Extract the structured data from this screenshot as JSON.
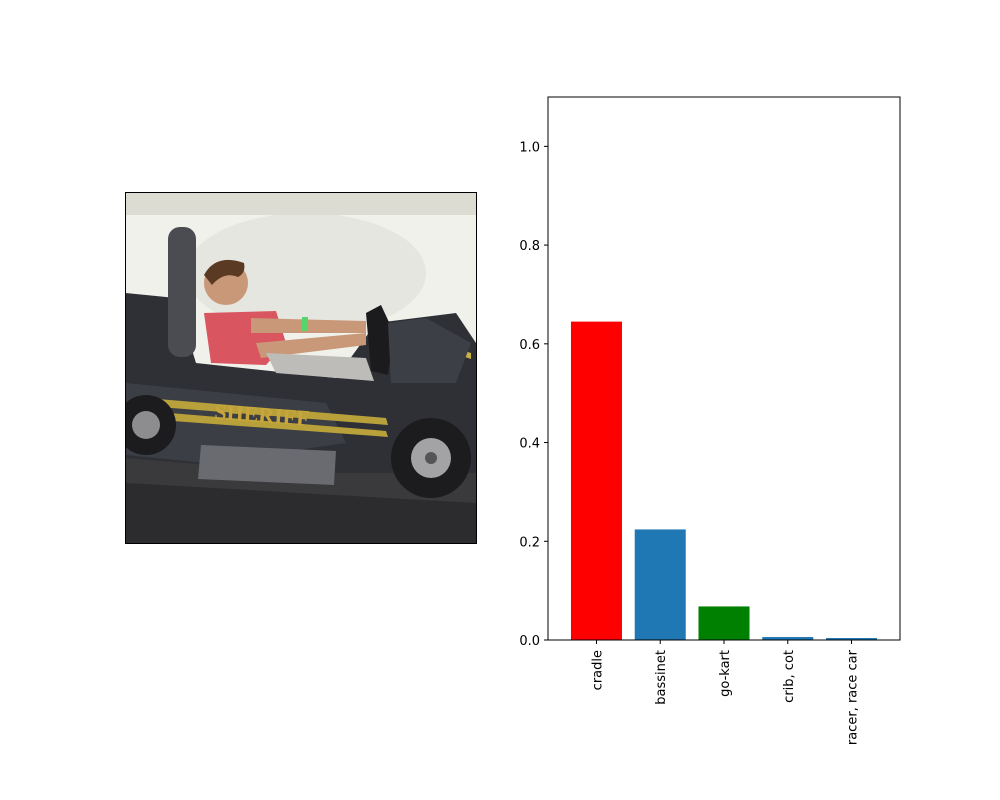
{
  "image_panel": {
    "description_icon": "photo-icon",
    "car_text": "SHERIFF"
  },
  "colors": {
    "cradle": "#ff0000",
    "bassinet": "#1f77b4",
    "go-kart": "#008000",
    "crib, cot": "#1f77b4",
    "racer, race car": "#1f77b4"
  },
  "chart_data": {
    "type": "bar",
    "categories": [
      "cradle",
      "bassinet",
      "go-kart",
      "crib, cot",
      "racer, race car"
    ],
    "values": [
      0.645,
      0.224,
      0.068,
      0.006,
      0.004
    ],
    "bar_colors": [
      "#ff0000",
      "#1f77b4",
      "#008000",
      "#1f77b4",
      "#1f77b4"
    ],
    "ylim": [
      0,
      1.1
    ],
    "yticks": [
      "0.0",
      "0.2",
      "0.4",
      "0.6",
      "0.8",
      "1.0"
    ],
    "ytick_values": [
      0.0,
      0.2,
      0.4,
      0.6,
      0.8,
      1.0
    ],
    "title": "",
    "xlabel": "",
    "ylabel": "",
    "grid": false
  }
}
